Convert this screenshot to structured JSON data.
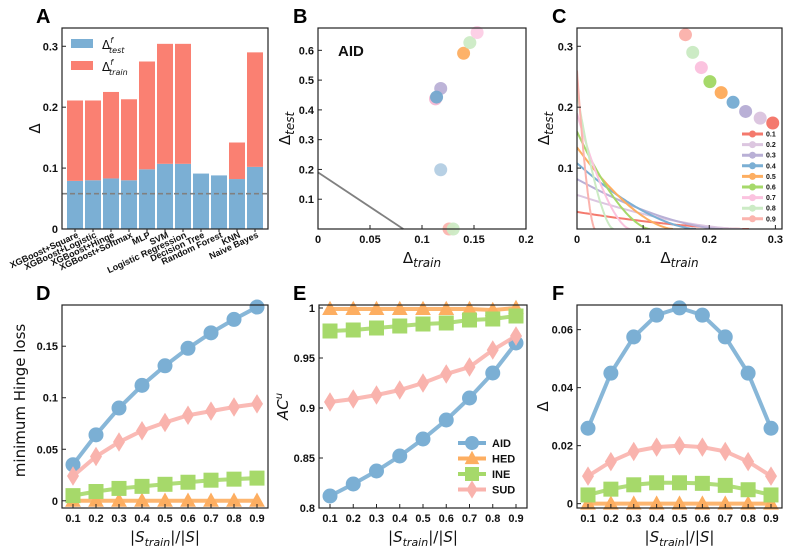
{
  "chart_data": [
    {
      "panel": "A",
      "type": "bar",
      "stacked": true,
      "title": "",
      "xlabel": "",
      "ylabel": "Δ",
      "ylim": [
        0,
        0.33
      ],
      "yticks": [
        "0",
        "0.1",
        "0.2",
        "0.3"
      ],
      "ytick_values": [
        0,
        0.1,
        0.2,
        0.3
      ],
      "reference_line": 0.058,
      "categories": [
        "XGBoost+Square",
        "XGBoost+Logistic",
        "XGBoost+Hinge",
        "XGBoost+Softmax",
        "MLP",
        "SVM",
        "Logistic Regression",
        "Decision Tree",
        "Random Forest",
        "KNN",
        "Naive Bayes"
      ],
      "series": [
        {
          "name": "Δ^f_test",
          "legend_main": "Δ",
          "legend_sup": "f",
          "legend_sub": "test",
          "color": "#7bafd4",
          "values": [
            0.079,
            0.08,
            0.083,
            0.08,
            0.098,
            0.107,
            0.107,
            0.091,
            0.088,
            0.082,
            0.102
          ]
        },
        {
          "name": "Δ^f_train",
          "legend_main": "Δ",
          "legend_sup": "f",
          "legend_sub": "train",
          "color": "#fa8072",
          "values": [
            0.132,
            0.131,
            0.142,
            0.133,
            0.177,
            0.197,
            0.197,
            0.0,
            0.0,
            0.06,
            0.188
          ]
        }
      ],
      "legend_position": "top-left"
    },
    {
      "panel": "B",
      "type": "scatter",
      "annotation": "AID",
      "xlabel_main": "Δ",
      "xlabel_sub": "train",
      "ylabel_main": "Δ",
      "ylabel_sub": "test",
      "xlim": [
        0,
        0.2
      ],
      "ylim": [
        0,
        0.675
      ],
      "xticks": [
        "0",
        "0.05",
        "0.1",
        "0.15",
        "0.2"
      ],
      "xtick_values": [
        0,
        0.05,
        0.1,
        0.15,
        0.2
      ],
      "yticks": [
        "0.1",
        "0.2",
        "0.3",
        "0.4",
        "0.5",
        "0.6"
      ],
      "ytick_values": [
        0.1,
        0.2,
        0.3,
        0.4,
        0.5,
        0.6
      ],
      "line": {
        "x": [
          0,
          0.082
        ],
        "y": [
          0.19,
          0.0
        ],
        "color": "#808080"
      },
      "points": [
        {
          "label": "0.1",
          "x": 0.126,
          "y": 0.0,
          "color": "#fbb4ae"
        },
        {
          "label": "0.2",
          "x": 0.13,
          "y": 0.0,
          "color": "#ccebc5"
        },
        {
          "label": "0.3",
          "x": 0.118,
          "y": 0.199,
          "color": "#b3cde3"
        },
        {
          "label": "0.4",
          "x": 0.113,
          "y": 0.437,
          "color": "#f4b6d2"
        },
        {
          "label": "0.5",
          "x": 0.118,
          "y": 0.472,
          "color": "#b9b0d6"
        },
        {
          "label": "0.6",
          "x": 0.114,
          "y": 0.443,
          "color": "#74a9cf"
        },
        {
          "label": "0.7",
          "x": 0.14,
          "y": 0.59,
          "color": "#fdae61"
        },
        {
          "label": "0.8",
          "x": 0.146,
          "y": 0.626,
          "color": "#ccebc5"
        },
        {
          "label": "0.9",
          "x": 0.153,
          "y": 0.66,
          "color": "#fccde5"
        }
      ]
    },
    {
      "panel": "C",
      "type": "scatter",
      "xlabel_main": "Δ",
      "xlabel_sub": "train",
      "ylabel_main": "Δ",
      "ylabel_sub": "test",
      "xlim": [
        0,
        0.31
      ],
      "ylim": [
        0,
        0.33
      ],
      "xticks": [
        "0",
        "0.1",
        "0.2",
        "0.3"
      ],
      "xtick_values": [
        0,
        0.1,
        0.2,
        0.3
      ],
      "yticks": [
        "0.1",
        "0.2",
        "0.3"
      ],
      "ytick_values": [
        0.1,
        0.2,
        0.3
      ],
      "legend_position": "bottom-right",
      "series": [
        {
          "name": "0.1",
          "color": "#f4796d",
          "point": [
            0.296,
            0.174
          ],
          "curve_y0": 0.028,
          "curve_x_end": 0.26
        },
        {
          "name": "0.2",
          "color": "#dcc6e0",
          "point": [
            0.277,
            0.182
          ],
          "curve_y0": 0.056,
          "curve_x_end": 0.25
        },
        {
          "name": "0.3",
          "color": "#b9b0d6",
          "point": [
            0.255,
            0.193
          ],
          "curve_y0": 0.082,
          "curve_x_end": 0.22
        },
        {
          "name": "0.4",
          "color": "#7bafd4",
          "point": [
            0.236,
            0.208
          ],
          "curve_y0": 0.108,
          "curve_x_end": 0.18
        },
        {
          "name": "0.5",
          "color": "#fdae61",
          "point": [
            0.218,
            0.224
          ],
          "curve_y0": 0.134,
          "curve_x_end": 0.145
        },
        {
          "name": "0.6",
          "color": "#a6d96a",
          "point": [
            0.201,
            0.242
          ],
          "curve_y0": 0.16,
          "curve_x_end": 0.11
        },
        {
          "name": "0.7",
          "color": "#fbc3df",
          "point": [
            0.188,
            0.265
          ],
          "curve_y0": 0.19,
          "curve_x_end": 0.08
        },
        {
          "name": "0.8",
          "color": "#ccebc5",
          "point": [
            0.175,
            0.29
          ],
          "curve_y0": 0.225,
          "curve_x_end": 0.055
        },
        {
          "name": "0.9",
          "color": "#fbb4ae",
          "point": [
            0.164,
            0.319
          ],
          "curve_y0": 0.26,
          "curve_x_end": 0.027
        }
      ]
    },
    {
      "panel": "D",
      "type": "line",
      "xlabel": "|S_train|/|S|",
      "ylabel": "minimum Hinge loss",
      "x": [
        0.1,
        0.2,
        0.3,
        0.4,
        0.5,
        0.6,
        0.7,
        0.8,
        0.9
      ],
      "xticks": [
        "0.1",
        "0.2",
        "0.3",
        "0.4",
        "0.5",
        "0.6",
        "0.7",
        "0.8",
        "0.9"
      ],
      "ylim": [
        -0.007,
        0.19
      ],
      "yticks": [
        "0",
        "0.05",
        "0.1",
        "0.15"
      ],
      "ytick_values": [
        0,
        0.05,
        0.1,
        0.15
      ],
      "series": [
        {
          "name": "AID",
          "marker": "circle",
          "color": "#7bafd4",
          "values": [
            0.035,
            0.064,
            0.09,
            0.112,
            0.131,
            0.148,
            0.163,
            0.176,
            0.188
          ]
        },
        {
          "name": "HED",
          "marker": "triangle",
          "color": "#fdae61",
          "values": [
            0.0,
            0.0,
            0.0,
            0.0,
            0.0,
            0.0,
            0.0,
            0.0,
            0.0
          ]
        },
        {
          "name": "INE",
          "marker": "square",
          "color": "#a6d96a",
          "values": [
            0.005,
            0.009,
            0.012,
            0.014,
            0.016,
            0.018,
            0.02,
            0.021,
            0.022
          ]
        },
        {
          "name": "SUD",
          "marker": "diamond",
          "color": "#f9b3ad",
          "values": [
            0.024,
            0.043,
            0.057,
            0.068,
            0.076,
            0.083,
            0.087,
            0.091,
            0.094
          ]
        }
      ]
    },
    {
      "panel": "E",
      "type": "line",
      "xlabel": "|S_train|/|S|",
      "ylabel_main": "AC",
      "ylabel_sup": "u",
      "x": [
        0.1,
        0.2,
        0.3,
        0.4,
        0.5,
        0.6,
        0.7,
        0.8,
        0.9
      ],
      "xticks": [
        "0.1",
        "0.2",
        "0.3",
        "0.4",
        "0.5",
        "0.6",
        "0.7",
        "0.8",
        "0.9"
      ],
      "ylim": [
        0.8,
        1.003
      ],
      "yticks": [
        "0.8",
        "0.85",
        "0.9",
        "0.95",
        "1"
      ],
      "ytick_values": [
        0.8,
        0.85,
        0.9,
        0.95,
        1.0
      ],
      "legend_position": "bottom-right",
      "series": [
        {
          "name": "AID",
          "marker": "circle",
          "color": "#7bafd4",
          "values": [
            0.812,
            0.824,
            0.837,
            0.852,
            0.869,
            0.888,
            0.91,
            0.935,
            0.965
          ]
        },
        {
          "name": "HED",
          "marker": "triangle",
          "color": "#fdae61",
          "values": [
            0.999,
            0.999,
            0.999,
            0.999,
            0.999,
            0.999,
            0.999,
            0.998,
            1.0
          ]
        },
        {
          "name": "INE",
          "marker": "square",
          "color": "#a6d96a",
          "values": [
            0.977,
            0.978,
            0.98,
            0.982,
            0.984,
            0.985,
            0.988,
            0.989,
            0.992
          ]
        },
        {
          "name": "SUD",
          "marker": "diamond",
          "color": "#f9b3ad",
          "values": [
            0.906,
            0.909,
            0.913,
            0.918,
            0.925,
            0.934,
            0.941,
            0.958,
            0.972
          ]
        }
      ]
    },
    {
      "panel": "F",
      "type": "line",
      "xlabel": "|S_train|/|S|",
      "ylabel": "Δ",
      "x": [
        0.1,
        0.2,
        0.3,
        0.4,
        0.5,
        0.6,
        0.7,
        0.8,
        0.9
      ],
      "xticks": [
        "0.1",
        "0.2",
        "0.3",
        "0.4",
        "0.5",
        "0.6",
        "0.7",
        "0.8",
        "0.9"
      ],
      "ylim": [
        -0.0015,
        0.0685
      ],
      "yticks": [
        "0",
        "0.02",
        "0.04",
        "0.06"
      ],
      "ytick_values": [
        0,
        0.02,
        0.04,
        0.06
      ],
      "series": [
        {
          "name": "AID",
          "marker": "circle",
          "color": "#7bafd4",
          "values": [
            0.026,
            0.045,
            0.0575,
            0.065,
            0.0675,
            0.065,
            0.0575,
            0.045,
            0.026
          ]
        },
        {
          "name": "HED",
          "marker": "triangle",
          "color": "#fdae61",
          "values": [
            0.0,
            0.0,
            0.0,
            0.0,
            0.0,
            0.0,
            0.0,
            0.0,
            0.0
          ]
        },
        {
          "name": "INE",
          "marker": "square",
          "color": "#a6d96a",
          "values": [
            0.003,
            0.005,
            0.0065,
            0.0072,
            0.0072,
            0.007,
            0.0063,
            0.0048,
            0.003
          ]
        },
        {
          "name": "SUD",
          "marker": "diamond",
          "color": "#f9b3ad",
          "values": [
            0.0095,
            0.0145,
            0.018,
            0.0195,
            0.02,
            0.0195,
            0.018,
            0.0145,
            0.0095
          ]
        }
      ]
    }
  ],
  "panel_labels": [
    "A",
    "B",
    "C",
    "D",
    "E",
    "F"
  ]
}
